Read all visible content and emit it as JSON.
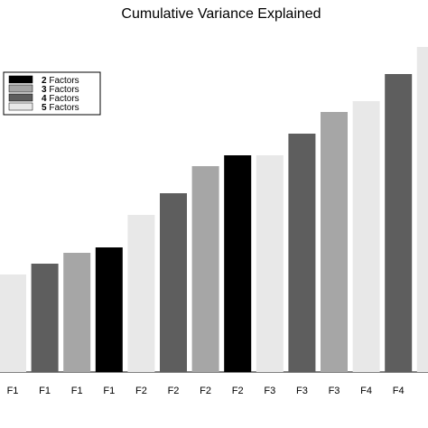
{
  "chart_data": {
    "type": "bar",
    "title": "Cumulative Variance Explained",
    "xlabel": "",
    "ylabel": "",
    "grid": false,
    "legend_position": "top-left",
    "categories": [
      "F1",
      "F1",
      "F1",
      "F1",
      "F2",
      "F2",
      "F2",
      "F2",
      "F3",
      "F3",
      "F3",
      "F4",
      "F4",
      "F"
    ],
    "groups": [
      "5 Factors",
      "4 Factors",
      "3 Factors",
      "2 Factors",
      "5 Factors",
      "4 Factors",
      "3 Factors",
      "2 Factors",
      "5 Factors",
      "4 Factors",
      "3 Factors",
      "5 Factors",
      "4 Factors",
      "5 Factors"
    ],
    "values": [
      0.36,
      0.4,
      0.44,
      0.46,
      0.58,
      0.66,
      0.76,
      0.8,
      0.8,
      0.88,
      0.96,
      1.0,
      1.1,
      1.2
    ],
    "ylim": [
      0,
      1.2
    ],
    "legend": [
      {
        "count": "2",
        "label": "Factors",
        "color": "#000000"
      },
      {
        "count": "3",
        "label": "Factors",
        "color": "#a6a6a6"
      },
      {
        "count": "4",
        "label": "Factors",
        "color": "#5e5e5e"
      },
      {
        "count": "5",
        "label": "Factors",
        "color": "#e8e8e8"
      }
    ],
    "series_colors": {
      "2 Factors": "#000000",
      "3 Factors": "#a6a6a6",
      "4 Factors": "#5e5e5e",
      "5 Factors": "#e8e8e8"
    }
  }
}
